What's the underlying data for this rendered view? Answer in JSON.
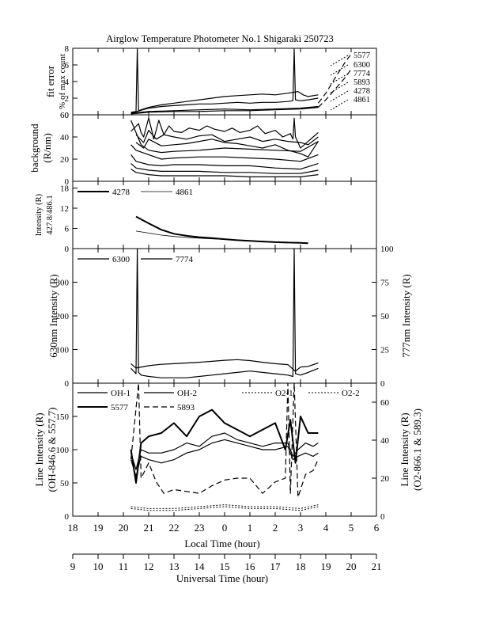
{
  "title": "Airglow Temperature Photometer No.1  Shigaraki  250723",
  "x_axes": {
    "local": {
      "label": "Local Time (hour)",
      "ticks": [
        "18",
        "19",
        "20",
        "21",
        "22",
        "23",
        "0",
        "1",
        "2",
        "3",
        "4",
        "5",
        "6"
      ]
    },
    "universal": {
      "label": "Universal Time (hour)",
      "ticks": [
        "9",
        "10",
        "11",
        "12",
        "13",
        "14",
        "15",
        "16",
        "17",
        "18",
        "19",
        "20",
        "21"
      ]
    }
  },
  "chart_data": [
    {
      "type": "line",
      "panel": "fit-error",
      "ylabel_lines": [
        "fit error",
        "% of max count"
      ],
      "ylim": [
        0,
        8
      ],
      "yticks": [
        "0",
        "2",
        "4",
        "6",
        "8"
      ],
      "legend_labels": [
        "5577",
        "6300",
        "7774",
        "5893",
        "4278",
        "4861"
      ],
      "series": [
        {
          "name": "5577",
          "style": "solid",
          "x": [
            20.3,
            20.5,
            20.55,
            20.6,
            20.7,
            21,
            21.5,
            22,
            22.5,
            23,
            23.5,
            0,
            0.5,
            1,
            1.5,
            2,
            2.5,
            2.9,
            3.1,
            3.3,
            3.7
          ],
          "y": [
            0.3,
            0.4,
            7.9,
            0.5,
            0.6,
            0.9,
            1.2,
            1.4,
            1.6,
            1.8,
            2.0,
            2.2,
            2.3,
            2.4,
            2.5,
            2.4,
            2.6,
            2.8,
            2.4,
            2.2,
            2.4
          ]
        },
        {
          "name": "6300",
          "style": "solid",
          "x": [
            20.3,
            21,
            21.5,
            22,
            22.5,
            23,
            23.5,
            0,
            0.5,
            1,
            1.5,
            2,
            2.5,
            2.7,
            2.75,
            2.8,
            3,
            3.3,
            3.7
          ],
          "y": [
            0.2,
            0.8,
            1.0,
            1.1,
            1.2,
            1.3,
            1.3,
            1.4,
            1.5,
            1.4,
            1.5,
            1.5,
            1.6,
            1.7,
            7.9,
            1.8,
            1.7,
            1.8,
            2.0
          ]
        },
        {
          "name": "7774",
          "style": "solid",
          "x": [
            20.3,
            21,
            22,
            23,
            0,
            1,
            2,
            3,
            3.7
          ],
          "y": [
            0.1,
            0.3,
            0.4,
            0.4,
            0.5,
            0.5,
            0.6,
            0.7,
            0.9
          ]
        },
        {
          "name": "5893",
          "style": "solid",
          "x": [
            20.3,
            21,
            22,
            23,
            0,
            1,
            2,
            3,
            3.7
          ],
          "y": [
            0.2,
            0.4,
            0.5,
            0.6,
            0.7,
            0.6,
            0.7,
            0.8,
            1.0
          ]
        },
        {
          "name": "4278",
          "style": "dash",
          "x": [
            3.7,
            4.0,
            4.4,
            4.8,
            5.0
          ],
          "y": [
            1.4,
            2.6,
            4.6,
            6.5,
            7.3
          ]
        },
        {
          "name": "4861",
          "style": "dash",
          "x": [
            3.7,
            4.0,
            4.4,
            4.8,
            5.0
          ],
          "y": [
            0.9,
            1.8,
            3.2,
            4.6,
            5.5
          ]
        }
      ]
    },
    {
      "type": "line",
      "panel": "background",
      "ylabel_lines": [
        "background",
        "(R/nm)"
      ],
      "ylim": [
        0,
        60
      ],
      "yticks": [
        "0",
        "20",
        "40",
        "60"
      ],
      "series": [
        {
          "name": "",
          "x": [
            20.3,
            20.6,
            20.7,
            20.8,
            21,
            21.1,
            21.2,
            21.4,
            21.6,
            21.8,
            22,
            22.3,
            22.6,
            23,
            23.3,
            23.6,
            0,
            0.3,
            0.6,
            1,
            1.3,
            1.6,
            2,
            2.3,
            2.6,
            2.7,
            2.75,
            2.8,
            3,
            3.3,
            3.5,
            3.7
          ],
          "y": [
            45,
            52,
            44,
            40,
            57,
            48,
            38,
            55,
            42,
            50,
            45,
            44,
            48,
            46,
            50,
            47,
            45,
            48,
            44,
            46,
            50,
            43,
            46,
            40,
            43,
            38,
            57,
            40,
            30,
            36,
            40,
            44
          ]
        },
        {
          "name": "",
          "x": [
            20.5,
            20.8,
            21,
            21.3,
            21.6,
            22,
            22.5,
            23,
            23.5,
            0,
            0.5,
            1,
            1.5,
            2,
            2.5,
            3,
            3.3,
            3.7
          ],
          "y": [
            42,
            35,
            46,
            38,
            42,
            40,
            38,
            41,
            42,
            36,
            38,
            40,
            36,
            38,
            36,
            35,
            33,
            40
          ]
        },
        {
          "name": "",
          "x": [
            20.5,
            20.8,
            21,
            21.5,
            22,
            22.5,
            23,
            23.5,
            0,
            0.5,
            1,
            1.5,
            2,
            2.5,
            3,
            3.3,
            3.7
          ],
          "y": [
            35,
            30,
            38,
            32,
            33,
            34,
            36,
            38,
            35,
            34,
            32,
            30,
            33,
            28,
            25,
            22,
            36
          ]
        },
        {
          "name": "",
          "x": [
            20.3,
            20.7,
            21,
            21.5,
            22,
            23,
            0,
            1,
            2,
            3,
            3.7
          ],
          "y": [
            55,
            33,
            28,
            26,
            27,
            28,
            30,
            29,
            28,
            27,
            36
          ]
        },
        {
          "name": "",
          "x": [
            20.3,
            20.5,
            21,
            21.5,
            22,
            23,
            0,
            1,
            2,
            3,
            3.7
          ],
          "y": [
            33,
            28,
            24,
            20,
            21,
            22,
            22,
            21,
            20,
            18,
            24
          ]
        },
        {
          "name": "",
          "x": [
            20.3,
            20.5,
            21,
            21.5,
            22,
            23,
            0,
            1,
            2,
            3,
            3.7
          ],
          "y": [
            24,
            18,
            15,
            14,
            15,
            15,
            14,
            14,
            12,
            11,
            16
          ]
        },
        {
          "name": "",
          "x": [
            20.3,
            20.5,
            21,
            21.5,
            22,
            23,
            0,
            1,
            2,
            3,
            3.7
          ],
          "y": [
            16,
            12,
            10,
            9,
            9,
            9,
            8,
            8,
            7,
            7,
            10
          ]
        },
        {
          "name": "",
          "x": [
            20.3,
            20.5,
            21,
            21.5,
            22,
            23,
            0,
            1,
            2,
            3,
            3.7
          ],
          "y": [
            11,
            8,
            6,
            5,
            5,
            5,
            5,
            4,
            4,
            4,
            6
          ]
        }
      ]
    },
    {
      "type": "line",
      "panel": "intensity-4278-4861",
      "ylabel_lines": [
        "Intensity (R)",
        "427.8/486.1"
      ],
      "ylim": [
        0,
        20
      ],
      "yticks": [
        "0",
        "6",
        "12",
        "18"
      ],
      "legend_labels": [
        "4278",
        "4861"
      ],
      "series": [
        {
          "name": "4278",
          "style": "thick",
          "x": [
            20.5,
            21,
            21.5,
            22,
            22.5,
            23,
            23.5,
            0,
            0.5,
            1,
            1.5,
            2,
            2.5,
            3,
            3.3
          ],
          "y": [
            9.5,
            7.5,
            5.6,
            4.4,
            3.8,
            3.4,
            3.1,
            2.8,
            2.5,
            2.3,
            2.1,
            1.9,
            1.8,
            1.7,
            1.6
          ]
        },
        {
          "name": "4861",
          "style": "thin",
          "x": [
            20.5,
            21,
            21.5,
            22,
            22.5,
            23,
            23.5,
            0,
            0.5,
            1,
            1.5,
            2,
            2.5,
            3,
            3.3
          ],
          "y": [
            5.2,
            4.6,
            4.0,
            3.6,
            3.3,
            3.1,
            2.9,
            2.7,
            2.5,
            2.3,
            2.2,
            2.0,
            1.9,
            1.8,
            1.7
          ]
        }
      ]
    },
    {
      "type": "line",
      "panel": "intensity-6300-7774",
      "ylabel_left": "630nm Intensity (R)",
      "ylabel_right": "777nm Intensity (R)",
      "ylim_left": [
        0,
        400
      ],
      "ylim_right": [
        0,
        100
      ],
      "yticks_left": [
        "0",
        "100",
        "200",
        "300"
      ],
      "yticks_right": [
        "0",
        "25",
        "50",
        "75",
        "100"
      ],
      "legend_labels": [
        "6300",
        "7774"
      ],
      "series": [
        {
          "name": "6300",
          "axis": "left",
          "style": "solid",
          "x": [
            20.3,
            20.5,
            21,
            21.5,
            22,
            22.5,
            23,
            23.5,
            0,
            0.5,
            1,
            1.5,
            2,
            2.5,
            2.8,
            3,
            3.3,
            3.7
          ],
          "y": [
            58,
            45,
            52,
            56,
            58,
            60,
            62,
            65,
            68,
            70,
            67,
            62,
            58,
            55,
            35,
            48,
            50,
            60
          ]
        },
        {
          "name": "7774",
          "axis": "right",
          "style": "solid",
          "x": [
            20.3,
            20.5,
            20.55,
            20.6,
            20.7,
            21,
            21.5,
            22,
            22.5,
            23,
            23.5,
            0,
            0.5,
            1,
            1.5,
            2,
            2.5,
            2.7,
            2.75,
            2.8,
            3,
            3.3,
            3.7
          ],
          "y": [
            11,
            7,
            100,
            8,
            6,
            5,
            4,
            4,
            4,
            5,
            6,
            7,
            8,
            9,
            8,
            7,
            6,
            5,
            100,
            7,
            6,
            8,
            11
          ]
        }
      ]
    },
    {
      "type": "line",
      "panel": "line-intensity",
      "ylabel_left": [
        "Line Intensity (R)",
        "(OH-846.6 & 557.7)"
      ],
      "ylabel_right": [
        "Line Intensity (R)",
        "(O2-866.1 & 589.3)"
      ],
      "ylim_left": [
        0,
        200
      ],
      "ylim_right": [
        0,
        70
      ],
      "yticks_left": [
        "0",
        "50",
        "100",
        "150"
      ],
      "yticks_right": [
        "0",
        "20",
        "40",
        "60"
      ],
      "legend_labels": [
        "OH-1",
        "OH-2",
        "O2-1",
        "O2-2",
        "5577",
        "5893"
      ],
      "series": [
        {
          "name": "OH-1",
          "axis": "left",
          "style": "solid",
          "x": [
            20.3,
            20.5,
            20.7,
            21,
            21.5,
            22,
            22.5,
            23,
            23.5,
            0,
            0.5,
            1,
            1.5,
            2,
            2.5,
            2.7,
            2.9,
            3.2,
            3.5,
            3.7
          ],
          "y": [
            85,
            60,
            90,
            85,
            80,
            85,
            95,
            100,
            110,
            115,
            110,
            105,
            100,
            100,
            105,
            85,
            90,
            95,
            90,
            95
          ]
        },
        {
          "name": "OH-2",
          "axis": "left",
          "style": "solid",
          "x": [
            20.3,
            20.5,
            20.7,
            21,
            21.5,
            22,
            22.5,
            23,
            23.5,
            0,
            0.5,
            1,
            1.5,
            2,
            2.5,
            2.7,
            2.9,
            3.2,
            3.5,
            3.7
          ],
          "y": [
            95,
            70,
            100,
            95,
            95,
            100,
            110,
            105,
            120,
            125,
            115,
            110,
            105,
            110,
            110,
            90,
            100,
            110,
            105,
            110
          ]
        },
        {
          "name": "5577",
          "axis": "left",
          "style": "thick",
          "x": [
            20.3,
            20.5,
            20.7,
            21,
            21.5,
            22,
            22.5,
            23,
            23.5,
            0,
            0.5,
            1,
            1.5,
            2,
            2.4,
            2.6,
            2.8,
            3.0,
            3.3,
            3.7
          ],
          "y": [
            100,
            50,
            110,
            120,
            125,
            140,
            120,
            150,
            160,
            140,
            130,
            120,
            130,
            140,
            100,
            145,
            80,
            150,
            125,
            125
          ]
        },
        {
          "name": "5893",
          "axis": "right",
          "style": "dash",
          "x": [
            20.3,
            20.6,
            20.7,
            21,
            21.3,
            21.6,
            22,
            22.5,
            23,
            23.5,
            0,
            0.5,
            1,
            1.5,
            2,
            2.4,
            2.5,
            2.6,
            2.75,
            2.9,
            3.2,
            3.5,
            3.7
          ],
          "y": [
            30,
            70,
            20,
            28,
            18,
            12,
            14,
            13,
            12,
            16,
            19,
            20,
            20,
            12,
            18,
            20,
            70,
            12,
            70,
            10,
            22,
            24,
            30
          ]
        },
        {
          "name": "O2-1",
          "axis": "right",
          "style": "dot",
          "x": [
            20.3,
            21,
            22,
            23,
            0,
            1,
            2,
            3,
            3.7
          ],
          "y": [
            5,
            4,
            4,
            5,
            6,
            5,
            5,
            4,
            6
          ]
        },
        {
          "name": "O2-2",
          "axis": "right",
          "style": "dot",
          "x": [
            20.3,
            21,
            22,
            23,
            0,
            1,
            2,
            3,
            3.7
          ],
          "y": [
            4,
            3,
            3,
            4,
            5,
            4,
            4,
            3,
            5
          ]
        }
      ]
    }
  ]
}
